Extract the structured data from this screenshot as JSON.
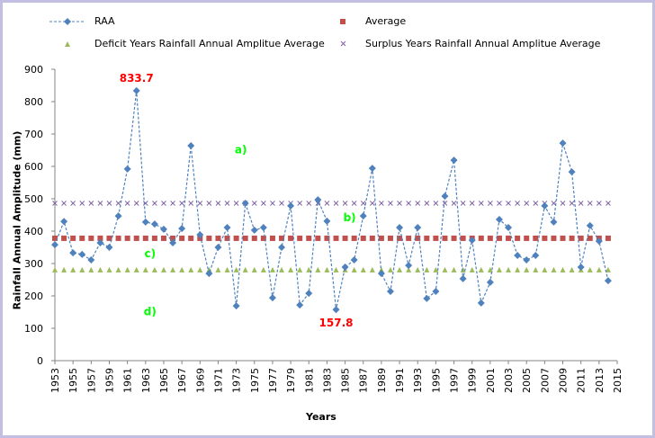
{
  "chart_data": {
    "type": "line",
    "title": "",
    "xlabel": "Years",
    "ylabel": "Rainfall Annual Amplitude (mm)",
    "ylim": [
      0,
      900
    ],
    "xlim": [
      1953,
      2015
    ],
    "y_ticks": [
      0,
      100,
      200,
      300,
      400,
      500,
      600,
      700,
      800,
      900
    ],
    "x_ticks": [
      1953,
      1955,
      1957,
      1959,
      1961,
      1963,
      1965,
      1967,
      1969,
      1971,
      1973,
      1975,
      1977,
      1979,
      1981,
      1983,
      1985,
      1987,
      1989,
      1991,
      1993,
      1995,
      1997,
      1999,
      2001,
      2003,
      2005,
      2007,
      2009,
      2011,
      2013,
      2015
    ],
    "grid": false,
    "legend": "top",
    "x": [
      1953,
      1954,
      1955,
      1956,
      1957,
      1958,
      1959,
      1960,
      1961,
      1962,
      1963,
      1964,
      1965,
      1966,
      1967,
      1968,
      1969,
      1970,
      1971,
      1972,
      1973,
      1974,
      1975,
      1976,
      1977,
      1978,
      1979,
      1980,
      1981,
      1982,
      1983,
      1984,
      1985,
      1986,
      1987,
      1988,
      1989,
      1990,
      1991,
      1992,
      1993,
      1994,
      1995,
      1996,
      1997,
      1998,
      1999,
      2000,
      2001,
      2002,
      2003,
      2004,
      2005,
      2006,
      2007,
      2008,
      2009,
      2010,
      2011,
      2012,
      2013,
      2014
    ],
    "series": [
      {
        "name": "RAA",
        "style": "dashed-line-diamond",
        "color": "#4f81bd",
        "values": [
          358,
          430,
          333,
          328,
          311,
          364,
          350,
          447,
          592,
          833.7,
          428,
          422,
          406,
          364,
          408,
          664,
          389,
          269,
          350,
          411,
          169,
          486,
          403,
          411,
          194,
          350,
          478,
          172,
          208,
          497,
          431,
          157.8,
          289,
          311,
          447,
          594,
          269,
          214,
          411,
          294,
          411,
          192,
          214,
          508,
          619,
          253,
          372,
          178,
          242,
          436,
          411,
          325,
          311,
          325,
          478,
          428,
          672,
          583,
          289,
          417,
          369,
          247
        ]
      },
      {
        "name": "Average",
        "style": "square-markers",
        "color": "#c0504d",
        "constant": 378
      },
      {
        "name": "Deficit Years Rainfall Annual Amplitue Average",
        "style": "triangle-markers",
        "color": "#9bbb59",
        "constant": 281
      },
      {
        "name": "Surplus Years Rainfall Annual Amplitue Average",
        "style": "x-markers",
        "color": "#8064a2",
        "constant": 486
      }
    ],
    "annotations": [
      {
        "text": "833.7",
        "x": 1962,
        "y": 833.7,
        "color": "#ff0000"
      },
      {
        "text": "157.8",
        "x": 1984,
        "y": 157.8,
        "color": "#ff0000"
      },
      {
        "text": "a)",
        "x": 1973.5,
        "y": 640,
        "color": "#00ff00"
      },
      {
        "text": "b)",
        "x": 1985.5,
        "y": 430,
        "color": "#00ff00"
      },
      {
        "text": "c)",
        "x": 1963.5,
        "y": 320,
        "color": "#00ff00"
      },
      {
        "text": "d)",
        "x": 1963.5,
        "y": 140,
        "color": "#00ff00"
      }
    ]
  },
  "legend": [
    {
      "label": "RAA"
    },
    {
      "label": "Average"
    },
    {
      "label": "Deficit Years Rainfall Annual Amplitue Average"
    },
    {
      "label": "Surplus Years Rainfall Annual Amplitue Average"
    }
  ]
}
